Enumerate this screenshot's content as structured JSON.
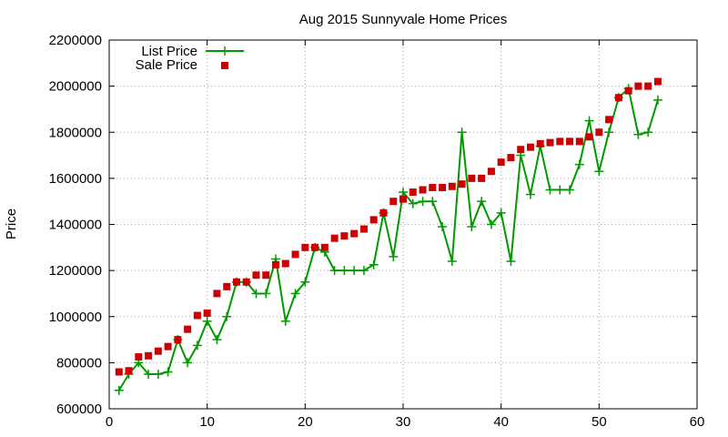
{
  "chart_data": {
    "type": "line",
    "title": "Aug 2015 Sunnyvale Home Prices",
    "xlabel": "",
    "ylabel": "Price",
    "xlim": [
      0,
      60
    ],
    "ylim": [
      600000,
      2200000
    ],
    "x_ticks": [
      0,
      10,
      20,
      30,
      40,
      50,
      60
    ],
    "y_ticks": [
      600000,
      800000,
      1000000,
      1200000,
      1400000,
      1600000,
      1800000,
      2000000,
      2200000
    ],
    "grid": true,
    "legend_position": "top-left",
    "series": [
      {
        "name": "List Price",
        "style": "line+cross",
        "color": "#009900",
        "x": [
          1,
          2,
          3,
          4,
          5,
          6,
          7,
          8,
          9,
          10,
          11,
          12,
          13,
          14,
          15,
          16,
          17,
          18,
          19,
          20,
          21,
          22,
          23,
          24,
          25,
          26,
          27,
          28,
          29,
          30,
          31,
          32,
          33,
          34,
          35,
          36,
          37,
          38,
          39,
          40,
          41,
          42,
          43,
          44,
          45,
          46,
          47,
          48,
          49,
          50,
          51,
          52,
          53,
          54,
          55,
          56
        ],
        "y": [
          680000,
          750000,
          800000,
          750000,
          750000,
          760000,
          900000,
          800000,
          875000,
          980000,
          900000,
          1000000,
          1150000,
          1150000,
          1100000,
          1100000,
          1250000,
          980000,
          1100000,
          1150000,
          1300000,
          1280000,
          1200000,
          1200000,
          1200000,
          1200000,
          1225000,
          1450000,
          1260000,
          1540000,
          1490000,
          1500000,
          1500000,
          1390000,
          1240000,
          1800000,
          1390000,
          1500000,
          1400000,
          1450000,
          1240000,
          1700000,
          1530000,
          1740000,
          1550000,
          1550000,
          1550000,
          1660000,
          1850000,
          1630000,
          1800000,
          1950000,
          1990000,
          1790000,
          1800000,
          1940000
        ]
      },
      {
        "name": "Sale Price",
        "style": "square",
        "color": "#cc0000",
        "x": [
          1,
          2,
          3,
          4,
          5,
          6,
          7,
          8,
          9,
          10,
          11,
          12,
          13,
          14,
          15,
          16,
          17,
          18,
          19,
          20,
          21,
          22,
          23,
          24,
          25,
          26,
          27,
          28,
          29,
          30,
          31,
          32,
          33,
          34,
          35,
          36,
          37,
          38,
          39,
          40,
          41,
          42,
          43,
          44,
          45,
          46,
          47,
          48,
          49,
          50,
          51,
          52,
          53,
          54,
          55,
          56
        ],
        "y": [
          760000,
          765000,
          825000,
          830000,
          850000,
          870000,
          900000,
          945000,
          1005000,
          1015000,
          1100000,
          1130000,
          1150000,
          1150000,
          1180000,
          1180000,
          1225000,
          1230000,
          1270000,
          1300000,
          1300000,
          1300000,
          1340000,
          1350000,
          1360000,
          1380000,
          1420000,
          1450000,
          1500000,
          1510000,
          1540000,
          1550000,
          1560000,
          1560000,
          1565000,
          1575000,
          1600000,
          1600000,
          1630000,
          1670000,
          1690000,
          1725000,
          1735000,
          1750000,
          1755000,
          1760000,
          1760000,
          1760000,
          1780000,
          1800000,
          1855000,
          1950000,
          1980000,
          2000000,
          2000000,
          2020000
        ]
      }
    ]
  }
}
